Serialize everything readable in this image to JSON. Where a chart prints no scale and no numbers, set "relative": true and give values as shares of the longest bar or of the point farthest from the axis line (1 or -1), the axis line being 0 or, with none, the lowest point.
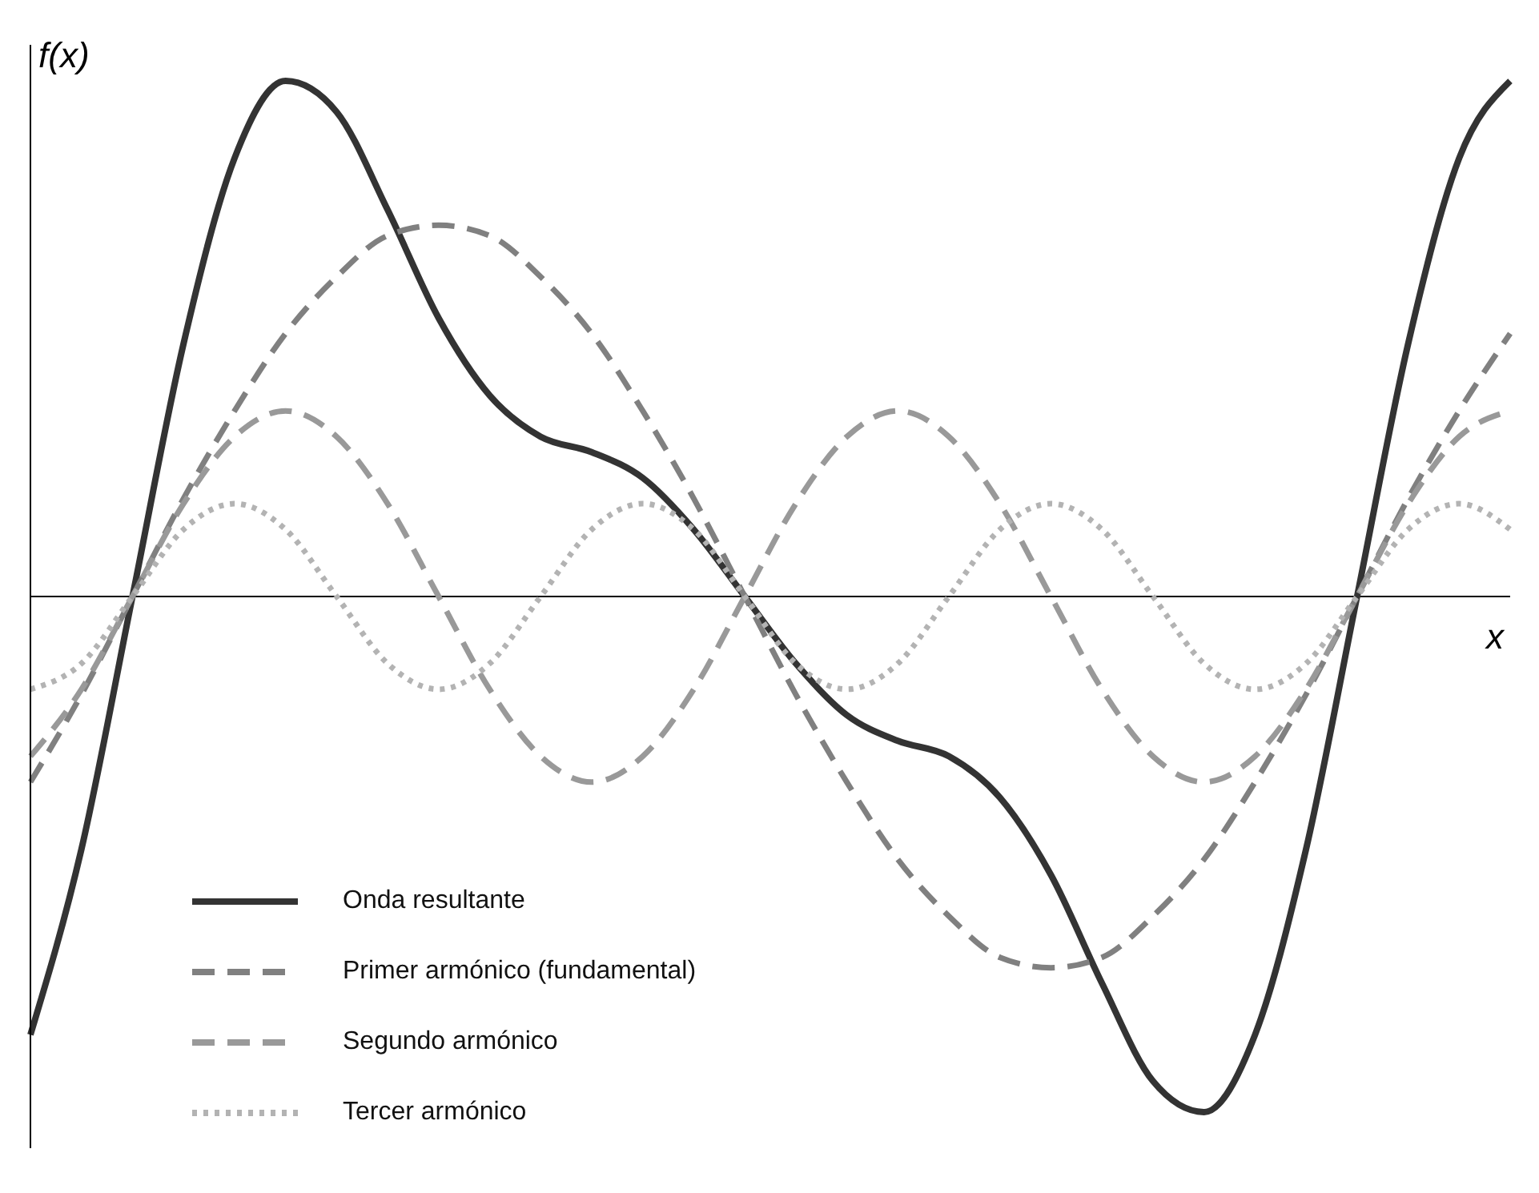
{
  "chart_data": {
    "type": "line",
    "relative": true,
    "xlabel": "x",
    "ylabel": "f(x)",
    "tick_labels": false,
    "legend": "bottom left",
    "marker": "none",
    "grid": false,
    "categories": [
      null,
      null,
      null,
      null,
      null,
      null,
      null,
      null,
      null,
      null,
      null,
      null,
      null,
      null,
      null,
      null,
      null,
      null,
      null,
      null,
      null,
      null,
      null,
      null,
      null,
      null,
      null,
      null,
      null,
      null
    ],
    "series": [
      {
        "name": "Onda resultante",
        "color": "#333333",
        "line_style": "solid",
        "values": [
          -0.85,
          -0.49,
          0,
          0.49,
          0.85,
          1,
          0.94,
          0.75,
          0.54,
          0.39,
          0.31,
          0.28,
          0.23,
          0.13,
          0,
          -0.13,
          -0.23,
          -0.28,
          -0.31,
          -0.39,
          -0.54,
          -0.75,
          -0.94,
          -1,
          -0.85,
          -0.49,
          0,
          0.49,
          0.85,
          1
        ]
      },
      {
        "name": "Primer armónico (fundamental)",
        "color": "#808080",
        "line_style": "dashed",
        "values": [
          -0.36,
          -0.19,
          0,
          0.19,
          0.36,
          0.51,
          0.62,
          0.7,
          0.72,
          0.7,
          0.62,
          0.51,
          0.36,
          0.19,
          0,
          -0.19,
          -0.36,
          -0.51,
          -0.62,
          -0.7,
          -0.72,
          -0.7,
          -0.62,
          -0.51,
          -0.36,
          -0.19,
          0,
          0.19,
          0.36,
          0.51
        ]
      },
      {
        "name": "Segundo armónico",
        "color": "#999999",
        "line_style": "dashed",
        "values": [
          -0.31,
          -0.18,
          0,
          0.18,
          0.31,
          0.36,
          0.31,
          0.18,
          0,
          -0.18,
          -0.31,
          -0.36,
          -0.31,
          -0.18,
          0,
          0.18,
          0.31,
          0.36,
          0.31,
          0.18,
          0,
          -0.18,
          -0.31,
          -0.36,
          -0.31,
          -0.18,
          0,
          0.18,
          0.31,
          0.36
        ]
      },
      {
        "name": "Tercer armónico",
        "color": "#b3b3b3",
        "line_style": "dotted",
        "values": [
          -0.18,
          -0.13,
          0,
          0.13,
          0.18,
          0.13,
          0,
          -0.13,
          -0.18,
          -0.13,
          0,
          0.13,
          0.18,
          0.13,
          0,
          -0.13,
          -0.18,
          -0.13,
          0,
          0.13,
          0.18,
          0.13,
          0,
          -0.13,
          -0.18,
          -0.13,
          0,
          0.13,
          0.18,
          0.13
        ]
      }
    ]
  }
}
